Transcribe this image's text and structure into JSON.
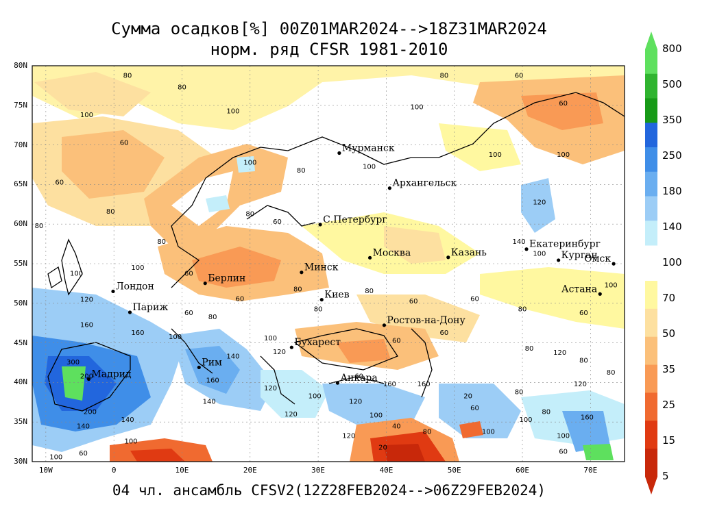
{
  "title": {
    "line1": "Сумма осадков[%] 00Z01MAR2024-->18Z31MAR2024",
    "line2": "норм. ряд CFSR 1981-2010"
  },
  "footer": "04 чл. ансамбль CFSV2(12Z28FEB2024-->06Z29FEB2024)",
  "map": {
    "lon_range": [
      -12,
      75
    ],
    "lat_range": [
      30,
      80
    ],
    "lat_ticks": [
      "30N",
      "35N",
      "40N",
      "45N",
      "50N",
      "55N",
      "60N",
      "65N",
      "70N",
      "75N",
      "80N"
    ],
    "lon_ticks": [
      "10W",
      "0",
      "10E",
      "20E",
      "30E",
      "40E",
      "50E",
      "60E",
      "70E"
    ],
    "cities": [
      {
        "name": "Мурманск",
        "lon": 33.1,
        "lat": 68.97
      },
      {
        "name": "Архангельск",
        "lon": 40.5,
        "lat": 64.54
      },
      {
        "name": "С.Петербург",
        "lon": 30.3,
        "lat": 59.94
      },
      {
        "name": "Москва",
        "lon": 37.6,
        "lat": 55.75
      },
      {
        "name": "Казань",
        "lon": 49.1,
        "lat": 55.8
      },
      {
        "name": "Екатеринбург",
        "lon": 60.6,
        "lat": 56.84
      },
      {
        "name": "Курган",
        "lon": 65.3,
        "lat": 55.44
      },
      {
        "name": "Омск",
        "lon": 73.4,
        "lat": 54.99
      },
      {
        "name": "Астана",
        "lon": 71.4,
        "lat": 51.17
      },
      {
        "name": "Минск",
        "lon": 27.56,
        "lat": 53.9
      },
      {
        "name": "Берлин",
        "lon": 13.4,
        "lat": 52.52
      },
      {
        "name": "Лондон",
        "lon": -0.12,
        "lat": 51.5
      },
      {
        "name": "Париж",
        "lon": 2.35,
        "lat": 48.86
      },
      {
        "name": "Киев",
        "lon": 30.52,
        "lat": 50.45
      },
      {
        "name": "Ростов-на-Дону",
        "lon": 39.7,
        "lat": 47.23
      },
      {
        "name": "Бухарест",
        "lon": 26.1,
        "lat": 44.43
      },
      {
        "name": "Рим",
        "lon": 12.5,
        "lat": 41.9
      },
      {
        "name": "Мадрид",
        "lon": -3.7,
        "lat": 40.42
      },
      {
        "name": "Анкара",
        "lon": 32.85,
        "lat": 39.93
      }
    ],
    "contour_labels": [
      {
        "text": "80",
        "lon": 2,
        "lat": 78.5
      },
      {
        "text": "80",
        "lon": 10,
        "lat": 77
      },
      {
        "text": "100",
        "lon": -4,
        "lat": 73.5
      },
      {
        "text": "60",
        "lon": 1.5,
        "lat": 70
      },
      {
        "text": "60",
        "lon": -8,
        "lat": 65
      },
      {
        "text": "80",
        "lon": -0.5,
        "lat": 61.3
      },
      {
        "text": "80",
        "lon": -11,
        "lat": 59.5
      },
      {
        "text": "80",
        "lon": 7,
        "lat": 57.5
      },
      {
        "text": "100",
        "lon": 3.5,
        "lat": 54.2
      },
      {
        "text": "60",
        "lon": 11,
        "lat": 53.5
      },
      {
        "text": "100",
        "lon": -5.5,
        "lat": 53.5
      },
      {
        "text": "120",
        "lon": -4,
        "lat": 50.2
      },
      {
        "text": "160",
        "lon": -4,
        "lat": 47
      },
      {
        "text": "160",
        "lon": 3.5,
        "lat": 46
      },
      {
        "text": "300",
        "lon": -6,
        "lat": 42.3
      },
      {
        "text": "200",
        "lon": -4,
        "lat": 40.5
      },
      {
        "text": "200",
        "lon": -3.5,
        "lat": 36
      },
      {
        "text": "140",
        "lon": -4.5,
        "lat": 34.2
      },
      {
        "text": "100",
        "lon": 2.5,
        "lat": 32.3
      },
      {
        "text": "100",
        "lon": -8.5,
        "lat": 30.3
      },
      {
        "text": "60",
        "lon": -4.5,
        "lat": 30.8
      },
      {
        "text": "140",
        "lon": 2,
        "lat": 35
      },
      {
        "text": "100",
        "lon": 17.5,
        "lat": 74
      },
      {
        "text": "100",
        "lon": 20,
        "lat": 67.5
      },
      {
        "text": "80",
        "lon": 20,
        "lat": 61
      },
      {
        "text": "60",
        "lon": 24,
        "lat": 60
      },
      {
        "text": "80",
        "lon": 27.5,
        "lat": 66.5
      },
      {
        "text": "100",
        "lon": 37.5,
        "lat": 67
      },
      {
        "text": "80",
        "lon": 48.5,
        "lat": 78.5
      },
      {
        "text": "60",
        "lon": 59.5,
        "lat": 78.5
      },
      {
        "text": "100",
        "lon": 44.5,
        "lat": 74.5
      },
      {
        "text": "60",
        "lon": 66,
        "lat": 75
      },
      {
        "text": "100",
        "lon": 56,
        "lat": 68.5
      },
      {
        "text": "100",
        "lon": 66,
        "lat": 68.5
      },
      {
        "text": "120",
        "lon": 62.5,
        "lat": 62.5
      },
      {
        "text": "100",
        "lon": 62.5,
        "lat": 56
      },
      {
        "text": "140",
        "lon": 59.5,
        "lat": 57.5
      },
      {
        "text": "80",
        "lon": 27,
        "lat": 51.5
      },
      {
        "text": "60",
        "lon": 18.5,
        "lat": 50.3
      },
      {
        "text": "80",
        "lon": 37.5,
        "lat": 51.3
      },
      {
        "text": "60",
        "lon": 44,
        "lat": 50
      },
      {
        "text": "60",
        "lon": 53,
        "lat": 50.3
      },
      {
        "text": "80",
        "lon": 60,
        "lat": 49
      },
      {
        "text": "60",
        "lon": 69,
        "lat": 48.5
      },
      {
        "text": "100",
        "lon": 73,
        "lat": 52
      },
      {
        "text": "80",
        "lon": 14.5,
        "lat": 48
      },
      {
        "text": "60",
        "lon": 11,
        "lat": 48.5
      },
      {
        "text": "100",
        "lon": 9,
        "lat": 45.5
      },
      {
        "text": "100",
        "lon": 23,
        "lat": 45.3
      },
      {
        "text": "140",
        "lon": 17.5,
        "lat": 43
      },
      {
        "text": "120",
        "lon": 24.3,
        "lat": 43.6
      },
      {
        "text": "160",
        "lon": 14.5,
        "lat": 40
      },
      {
        "text": "140",
        "lon": 14,
        "lat": 37.3
      },
      {
        "text": "120",
        "lon": 23,
        "lat": 39
      },
      {
        "text": "120",
        "lon": 26,
        "lat": 35.7
      },
      {
        "text": "100",
        "lon": 29.5,
        "lat": 38
      },
      {
        "text": "120",
        "lon": 35.5,
        "lat": 37.3
      },
      {
        "text": "160",
        "lon": 40.5,
        "lat": 39.5
      },
      {
        "text": "160",
        "lon": 45.5,
        "lat": 39.5
      },
      {
        "text": "120",
        "lon": 34.5,
        "lat": 33
      },
      {
        "text": "40",
        "lon": 41.5,
        "lat": 34.2
      },
      {
        "text": "20",
        "lon": 39.5,
        "lat": 31.5
      },
      {
        "text": "80",
        "lon": 46,
        "lat": 33.5
      },
      {
        "text": "100",
        "lon": 38.5,
        "lat": 35.6
      },
      {
        "text": "20",
        "lon": 52,
        "lat": 38
      },
      {
        "text": "60",
        "lon": 53,
        "lat": 36.5
      },
      {
        "text": "100",
        "lon": 55,
        "lat": 33.5
      },
      {
        "text": "100",
        "lon": 60.5,
        "lat": 35
      },
      {
        "text": "80",
        "lon": 59.5,
        "lat": 38.5
      },
      {
        "text": "80",
        "lon": 63.5,
        "lat": 36
      },
      {
        "text": "100",
        "lon": 66,
        "lat": 33
      },
      {
        "text": "120",
        "lon": 68.5,
        "lat": 39.5
      },
      {
        "text": "160",
        "lon": 69.5,
        "lat": 35.3
      },
      {
        "text": "80",
        "lon": 73,
        "lat": 41
      },
      {
        "text": "60",
        "lon": 66,
        "lat": 31
      },
      {
        "text": "80",
        "lon": 61,
        "lat": 44
      },
      {
        "text": "120",
        "lon": 65.5,
        "lat": 43.5
      },
      {
        "text": "80",
        "lon": 69,
        "lat": 42.5
      },
      {
        "text": "60",
        "lon": 41.5,
        "lat": 45
      },
      {
        "text": "60",
        "lon": 48.5,
        "lat": 46
      },
      {
        "text": "60",
        "lon": 36,
        "lat": 40.5
      },
      {
        "text": "80",
        "lon": 30,
        "lat": 49
      }
    ]
  },
  "colorbar": {
    "labels": [
      "800",
      "500",
      "350",
      "250",
      "180",
      "140",
      "100",
      "70",
      "50",
      "35",
      "25",
      "15",
      "5"
    ],
    "colors": [
      "#5ee05e",
      "#2fb42f",
      "#179a17",
      "#2266dd",
      "#3f8ee8",
      "#6aaef0",
      "#9ccdf6",
      "#c4eefa",
      "#fff8a0",
      "#fde0a0",
      "#fbc07a",
      "#f99a55",
      "#f06a30",
      "#e03a12",
      "#c8280a"
    ]
  }
}
